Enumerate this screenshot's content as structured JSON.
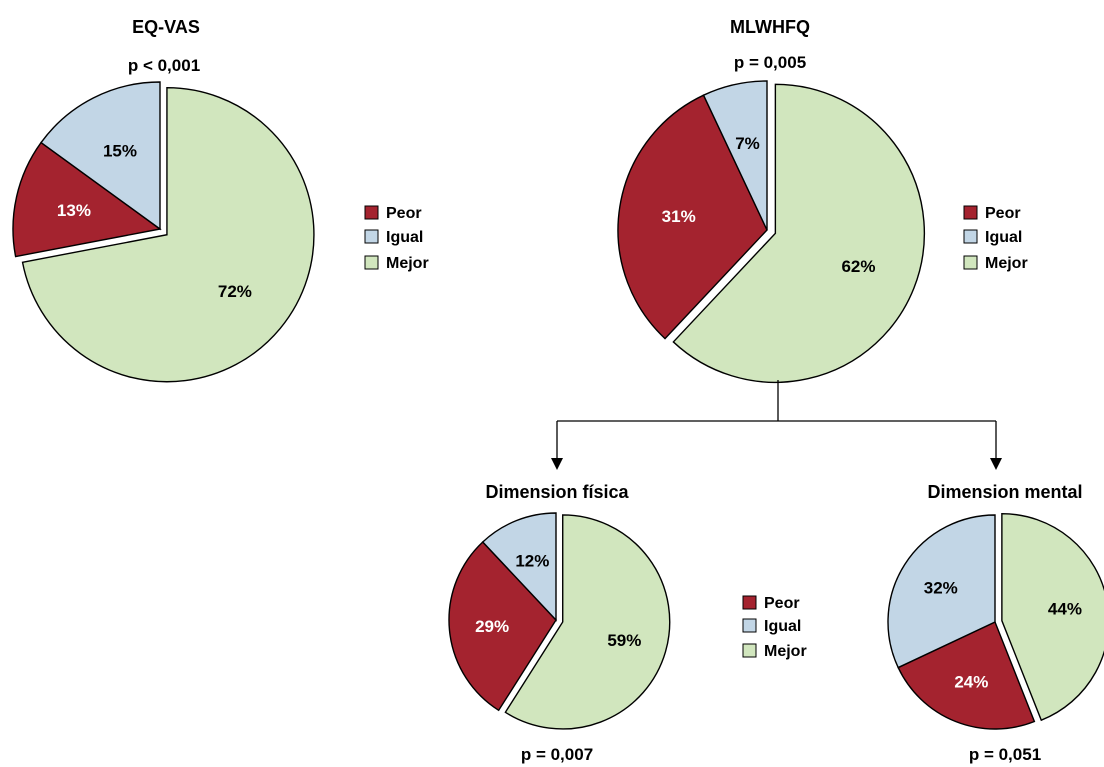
{
  "colors": {
    "peor": "#A4232F",
    "igual": "#C2D6E6",
    "mejor": "#D1E6BE",
    "outline": "#000000",
    "label_light": "#ffffff",
    "label_dark": "#000000"
  },
  "legend": {
    "items": [
      "Peor",
      "Igual",
      "Mejor"
    ]
  },
  "chart_data": [
    {
      "type": "pie",
      "title": "EQ-VAS",
      "p_value": "p < 0,001",
      "labels": [
        "Peor",
        "Igual",
        "Mejor"
      ],
      "values": [
        13,
        15,
        72
      ],
      "value_labels": [
        "13%",
        "15%",
        "72%"
      ],
      "exploded": "Mejor"
    },
    {
      "type": "pie",
      "title": "MLWHFQ",
      "p_value": "p = 0,005",
      "labels": [
        "Peor",
        "Igual",
        "Mejor"
      ],
      "values": [
        31,
        7,
        62
      ],
      "value_labels": [
        "31%",
        "7%",
        "62%"
      ],
      "exploded": "Mejor"
    },
    {
      "type": "pie",
      "title": "Dimension física",
      "p_value": "p = 0,007",
      "labels": [
        "Peor",
        "Igual",
        "Mejor"
      ],
      "values": [
        29,
        12,
        59
      ],
      "value_labels": [
        "29%",
        "12%",
        "59%"
      ],
      "exploded": "Mejor"
    },
    {
      "type": "pie",
      "title": "Dimension mental",
      "p_value": "p = 0,051",
      "labels": [
        "Peor",
        "Igual",
        "Mejor"
      ],
      "values": [
        24,
        32,
        44
      ],
      "value_labels": [
        "24%",
        "32%",
        "44%"
      ],
      "exploded": "Mejor"
    }
  ]
}
